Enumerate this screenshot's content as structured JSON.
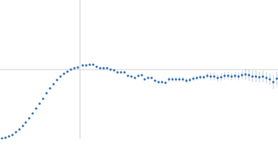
{
  "chart_data": {
    "type": "scatter",
    "color": "#2f6fb0",
    "error_color": "#a9bdd6",
    "reference_color": "#cccccc",
    "xlim": [
      0,
      6.02
    ],
    "ylim": [
      0,
      2.208
    ],
    "reference_lines": {
      "x": 1.732,
      "y": 1.104
    },
    "series": [
      {
        "x": [
          0.045,
          0.12,
          0.196,
          0.271,
          0.346,
          0.422,
          0.497,
          0.557,
          0.633,
          0.708,
          0.783,
          0.858,
          0.934,
          1.009,
          1.084,
          1.16,
          1.235,
          1.31,
          1.386,
          1.461,
          1.536,
          1.611,
          1.687,
          1.792,
          1.867,
          1.943,
          2.018,
          2.093,
          2.169,
          2.244,
          2.319,
          2.395,
          2.47,
          2.545,
          2.62,
          2.696,
          2.771,
          2.846,
          2.922,
          2.997,
          3.072,
          3.132,
          3.208,
          3.283,
          3.358,
          3.434,
          3.509,
          3.584,
          3.66,
          3.735,
          3.81,
          3.885,
          3.961,
          4.036,
          4.111,
          4.187,
          4.262,
          4.337,
          4.413,
          4.488,
          4.563,
          4.638,
          4.714,
          4.789,
          4.864,
          4.94,
          5.015,
          5.09,
          5.166,
          5.241,
          5.316,
          5.391,
          5.467,
          5.542,
          5.617,
          5.693,
          5.768,
          5.843,
          5.918,
          5.994
        ],
        "values": [
          0.011,
          0.022,
          0.044,
          0.066,
          0.11,
          0.155,
          0.21,
          0.265,
          0.331,
          0.408,
          0.486,
          0.563,
          0.64,
          0.729,
          0.806,
          0.872,
          0.938,
          0.994,
          1.038,
          1.071,
          1.104,
          1.126,
          1.137,
          1.17,
          1.17,
          1.181,
          1.181,
          1.148,
          1.126,
          1.126,
          1.126,
          1.104,
          1.093,
          1.06,
          1.06,
          1.06,
          1.005,
          0.994,
          0.972,
          1.005,
          1.016,
          0.949,
          0.972,
          0.972,
          0.927,
          0.905,
          0.905,
          0.894,
          0.949,
          0.949,
          0.949,
          0.949,
          0.949,
          0.927,
          0.938,
          0.96,
          0.972,
          0.983,
          0.983,
          1.005,
          0.994,
          0.994,
          0.972,
          0.983,
          1.005,
          1.005,
          0.994,
          1.005,
          0.994,
          1.016,
          1.027,
          1.016,
          0.994,
          0.994,
          0.983,
          0.994,
          0.972,
          0.949,
          0.905,
          0.96
        ],
        "errors": [
          0.005,
          0.005,
          0.005,
          0.005,
          0.005,
          0.005,
          0.005,
          0.005,
          0.005,
          0.005,
          0.005,
          0.005,
          0.005,
          0.005,
          0.005,
          0.005,
          0.005,
          0.005,
          0.005,
          0.005,
          0.005,
          0.005,
          0.005,
          0.005,
          0.005,
          0.005,
          0.005,
          0.005,
          0.005,
          0.005,
          0.005,
          0.005,
          0.005,
          0.005,
          0.005,
          0.005,
          0.005,
          0.005,
          0.005,
          0.005,
          0.005,
          0.02,
          0.02,
          0.02,
          0.02,
          0.02,
          0.02,
          0.02,
          0.04,
          0.04,
          0.04,
          0.04,
          0.04,
          0.04,
          0.04,
          0.04,
          0.04,
          0.04,
          0.04,
          0.04,
          0.06,
          0.06,
          0.06,
          0.06,
          0.06,
          0.06,
          0.06,
          0.06,
          0.06,
          0.06,
          0.09,
          0.09,
          0.09,
          0.09,
          0.09,
          0.09,
          0.09,
          0.09,
          0.11,
          0.11
        ]
      }
    ]
  }
}
